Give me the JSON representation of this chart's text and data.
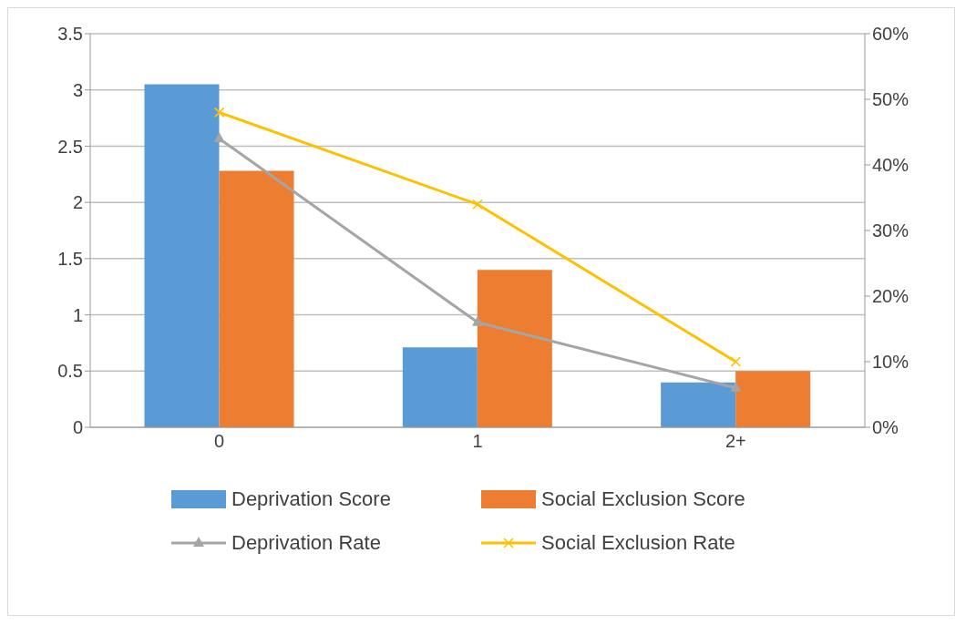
{
  "chart_data": {
    "type": "bar",
    "categories": [
      "0",
      "1",
      "2+"
    ],
    "series": [
      {
        "name": "Deprivation Score",
        "color": "#5b9bd5",
        "values": [
          3.05,
          0.71,
          0.4
        ]
      },
      {
        "name": "Social Exclusion Score",
        "color": "#ed7d31",
        "values": [
          2.28,
          1.4,
          0.5
        ]
      },
      {
        "name": "Deprivation Rate",
        "type": "line",
        "axis": "y2",
        "color": "#a5a5a5",
        "marker": "triangle",
        "values": [
          44,
          16,
          6
        ]
      },
      {
        "name": "Social Exclusion Rate",
        "type": "line",
        "axis": "y2",
        "color": "#ffc000",
        "marker": "cross",
        "values": [
          48,
          34,
          10
        ]
      }
    ],
    "ylim": [
      0,
      3.5
    ],
    "yticks": [
      0,
      0.5,
      1,
      1.5,
      2,
      2.5,
      3,
      3.5
    ],
    "y2lim": [
      0,
      60
    ],
    "y2ticks": [
      {
        "value": 0,
        "label": "0%"
      },
      {
        "value": 10,
        "label": "10%"
      },
      {
        "value": 20,
        "label": "20%"
      },
      {
        "value": 30,
        "label": "30%"
      },
      {
        "value": 40,
        "label": "40%"
      },
      {
        "value": 50,
        "label": "50%"
      },
      {
        "value": 60,
        "label": "60%"
      }
    ],
    "grid": "y",
    "legend": "bottom"
  }
}
